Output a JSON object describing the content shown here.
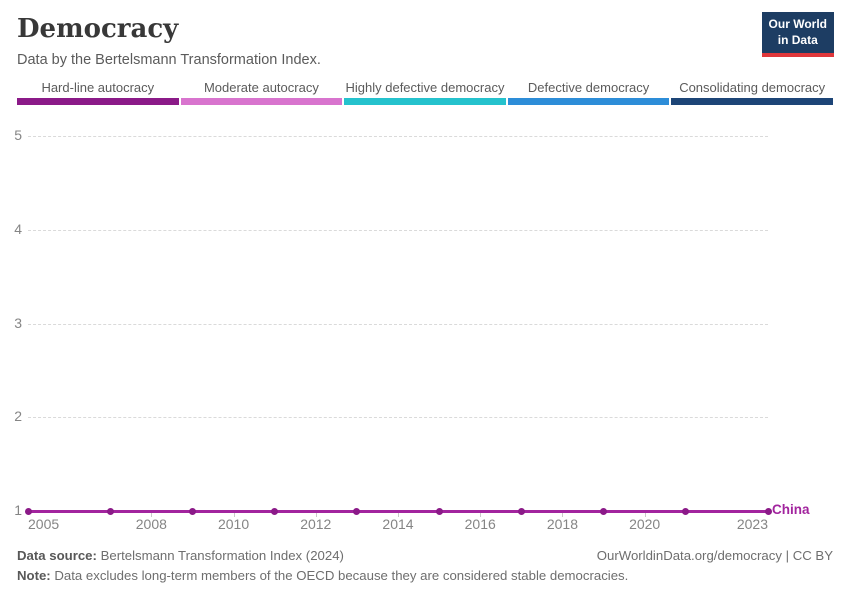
{
  "header": {
    "title": "Democracy",
    "subtitle": "Data by the Bertelsmann Transformation Index.",
    "logo": {
      "line1": "Our World",
      "line2": "in Data"
    }
  },
  "legend": {
    "items": [
      {
        "label": "Hard-line autocracy",
        "color": "#8b1a88"
      },
      {
        "label": "Moderate autocracy",
        "color": "#d874ce"
      },
      {
        "label": "Highly defective democracy",
        "color": "#25c2cd"
      },
      {
        "label": "Defective democracy",
        "color": "#2d8dd8"
      },
      {
        "label": "Consolidating democracy",
        "color": "#1d4577"
      }
    ]
  },
  "chart_data": {
    "type": "line",
    "title": "Democracy",
    "x": [
      2005,
      2007,
      2009,
      2011,
      2013,
      2015,
      2017,
      2019,
      2021,
      2023
    ],
    "series": [
      {
        "name": "China",
        "color": "#a2249e",
        "marker_color": "#8b1a88",
        "values": [
          1,
          1,
          1,
          1,
          1,
          1,
          1,
          1,
          1,
          1
        ]
      }
    ],
    "xlim": [
      2005,
      2023
    ],
    "ylim": [
      1,
      5
    ],
    "y_ticks": [
      1,
      2,
      3,
      4,
      5
    ],
    "x_tick_labels": [
      "2005",
      "2008",
      "2010",
      "2012",
      "2014",
      "2016",
      "2018",
      "2020",
      "2023"
    ],
    "x_tick_marks": [
      2008,
      2010,
      2012,
      2014,
      2016,
      2018,
      2020
    ],
    "grid": "horizontal-dashed",
    "grid_color": "#dadada",
    "axis_label_color": "#858585",
    "legend_position": "top"
  },
  "footer": {
    "source_label": "Data source:",
    "source_text": "Bertelsmann Transformation Index (2024)",
    "credit": "OurWorldinData.org/democracy | CC BY",
    "note_label": "Note:",
    "note_text": "Data excludes long-term members of the OECD because they are considered stable democracies."
  }
}
